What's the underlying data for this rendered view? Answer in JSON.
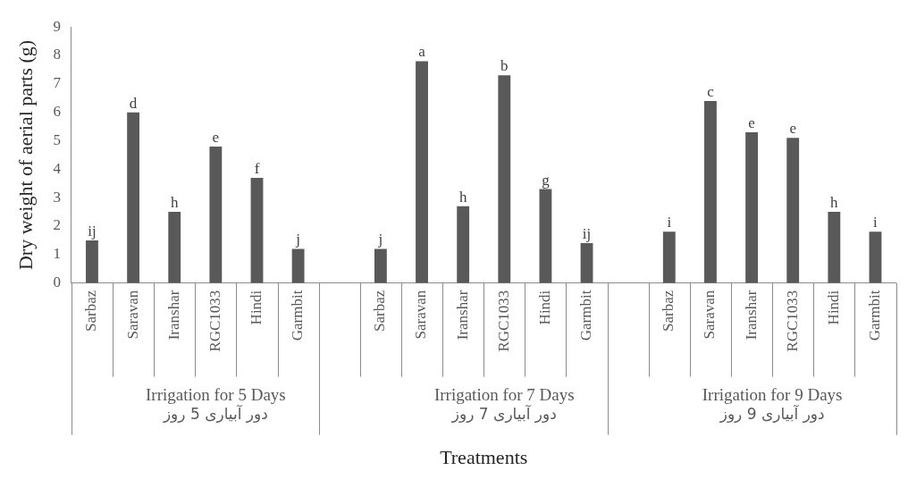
{
  "chart_data": {
    "type": "bar",
    "ylabel": "Dry weight of aerial parts (g)",
    "xlabel": "Treatments",
    "categories": [
      "Sarbaz",
      "Saravan",
      "Iranshar",
      "RGC1033",
      "Hindi",
      "Garmbit",
      null,
      "Sarbaz",
      "Saravan",
      "Iranshar",
      "RGC1033",
      "Hindi",
      "Garmbit",
      null,
      "Sarbaz",
      "Saravan",
      "Iranshar",
      "RGC1033",
      "Hindi",
      "Garmbit"
    ],
    "values": [
      1.5,
      6.0,
      2.5,
      4.8,
      3.7,
      1.2,
      null,
      1.2,
      7.8,
      2.7,
      7.3,
      3.3,
      1.4,
      null,
      1.8,
      6.4,
      5.3,
      5.1,
      2.5,
      1.8
    ],
    "value_labels": [
      "ij",
      "d",
      "h",
      "e",
      "f",
      "j",
      null,
      "j",
      "a",
      "h",
      "b",
      "g",
      "ij",
      null,
      "i",
      "c",
      "e",
      "e",
      "h",
      "i"
    ],
    "color": "#595959",
    "ylim": [
      0,
      9
    ],
    "yticks": [
      0,
      1,
      2,
      3,
      4,
      5,
      6,
      7,
      8,
      9
    ],
    "grid": false,
    "annotations": [
      "Irrigation for 5 Days\nدور آبیاری 5 روز",
      "Irrigation for 7 Days\nدور آبیاری 7 روز",
      "Irrigation for 9 Days\nدور آبیاری 9 روز"
    ]
  }
}
